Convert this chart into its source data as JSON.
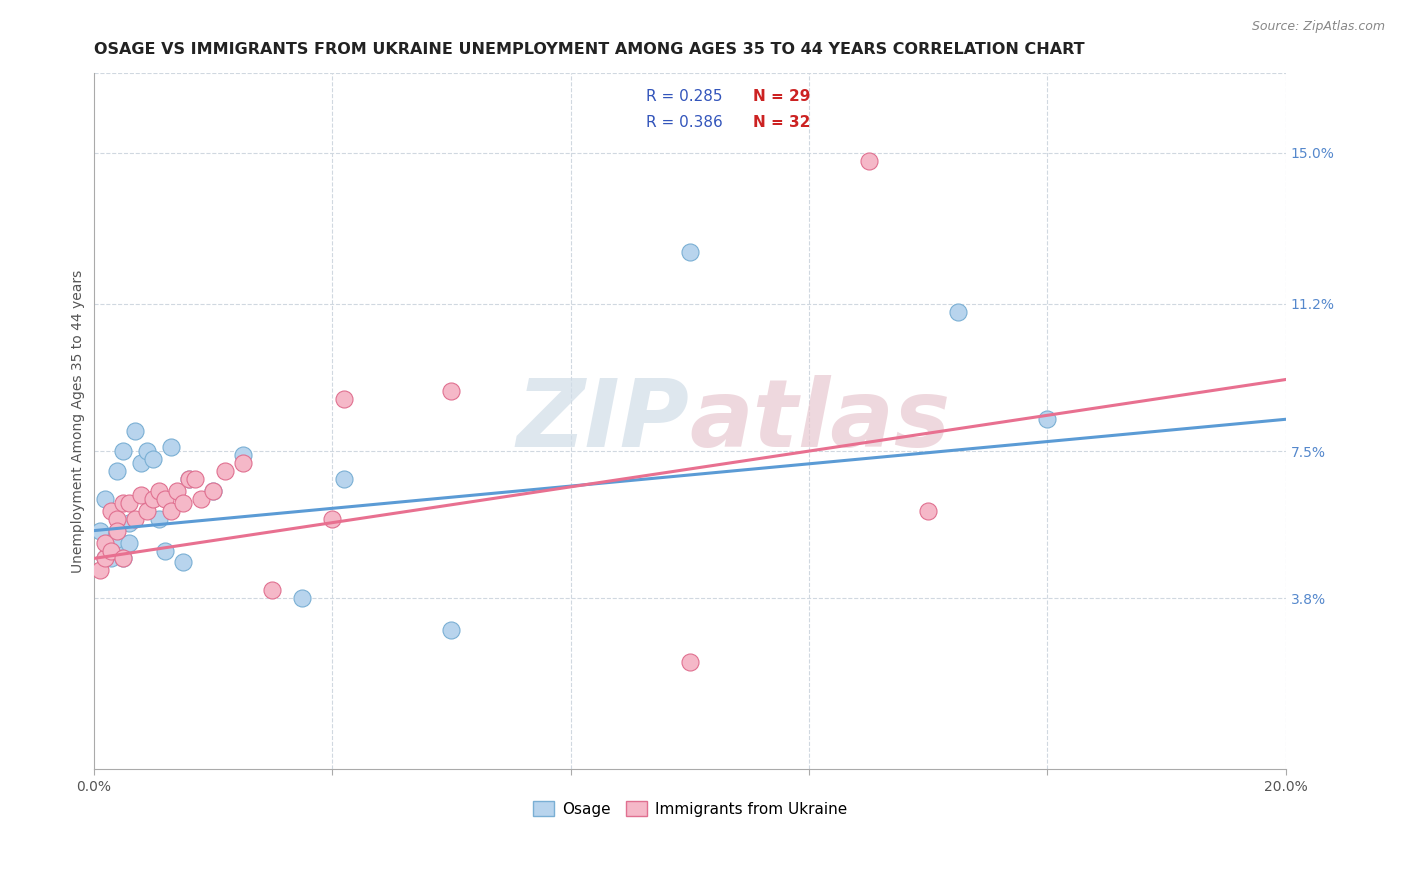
{
  "title": "OSAGE VS IMMIGRANTS FROM UKRAINE UNEMPLOYMENT AMONG AGES 35 TO 44 YEARS CORRELATION CHART",
  "source": "Source: ZipAtlas.com",
  "ylabel": "Unemployment Among Ages 35 to 44 years",
  "xlim": [
    0.0,
    0.2
  ],
  "ylim": [
    -0.005,
    0.17
  ],
  "ytick_positions": [
    0.038,
    0.075,
    0.112,
    0.15
  ],
  "ytick_labels": [
    "3.8%",
    "7.5%",
    "11.2%",
    "15.0%"
  ],
  "legend_r1": "R = 0.285",
  "legend_n1": "N = 29",
  "legend_r2": "R = 0.386",
  "legend_n2": "N = 32",
  "color_osage_face": "#b8d4ed",
  "color_osage_edge": "#7aafd4",
  "color_ukraine_face": "#f5b8c8",
  "color_ukraine_edge": "#e07090",
  "color_line_osage": "#5b9bd5",
  "color_line_ukraine": "#e87090",
  "color_r_text": "#3355bb",
  "color_n_text": "#cc2222",
  "watermark_color": "#d0dde8",
  "watermark_color2": "#e8c8d0",
  "background_color": "#ffffff",
  "grid_color": "#d0d8e0",
  "title_fontsize": 11.5,
  "axis_label_fontsize": 10,
  "tick_fontsize": 10,
  "osage_x": [
    0.001,
    0.002,
    0.002,
    0.003,
    0.003,
    0.004,
    0.004,
    0.004,
    0.005,
    0.005,
    0.006,
    0.006,
    0.007,
    0.008,
    0.009,
    0.01,
    0.011,
    0.012,
    0.013,
    0.015,
    0.016,
    0.02,
    0.025,
    0.035,
    0.042,
    0.06,
    0.1,
    0.145,
    0.16
  ],
  "osage_y": [
    0.055,
    0.048,
    0.063,
    0.048,
    0.052,
    0.05,
    0.053,
    0.07,
    0.048,
    0.075,
    0.052,
    0.057,
    0.08,
    0.072,
    0.075,
    0.073,
    0.058,
    0.05,
    0.076,
    0.047,
    0.068,
    0.065,
    0.074,
    0.038,
    0.068,
    0.03,
    0.125,
    0.11,
    0.083
  ],
  "ukraine_x": [
    0.001,
    0.002,
    0.002,
    0.003,
    0.003,
    0.004,
    0.004,
    0.005,
    0.005,
    0.006,
    0.007,
    0.008,
    0.009,
    0.01,
    0.011,
    0.012,
    0.013,
    0.014,
    0.015,
    0.016,
    0.017,
    0.018,
    0.02,
    0.022,
    0.025,
    0.03,
    0.04,
    0.042,
    0.06,
    0.1,
    0.13,
    0.14
  ],
  "ukraine_y": [
    0.045,
    0.048,
    0.052,
    0.06,
    0.05,
    0.058,
    0.055,
    0.048,
    0.062,
    0.062,
    0.058,
    0.064,
    0.06,
    0.063,
    0.065,
    0.063,
    0.06,
    0.065,
    0.062,
    0.068,
    0.068,
    0.063,
    0.065,
    0.07,
    0.072,
    0.04,
    0.058,
    0.088,
    0.09,
    0.022,
    0.148,
    0.06
  ]
}
